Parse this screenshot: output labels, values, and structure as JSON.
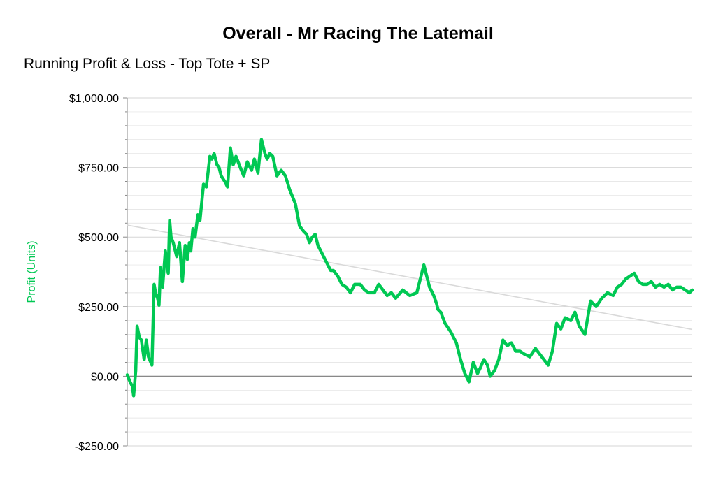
{
  "chart_data": {
    "type": "line",
    "title": "Overall - Mr Racing The Latemail",
    "subtitle": "Running Profit & Loss - Top Tote + SP",
    "xlabel": "",
    "ylabel": "Profit (Units)",
    "ylim": [
      -250,
      1000
    ],
    "y_ticks": [
      1000,
      750,
      500,
      250,
      0,
      -250
    ],
    "y_tick_labels": [
      "$1,000.00",
      "$750.00",
      "$500.00",
      "$250.00",
      "$0.00",
      "-$250.00"
    ],
    "grid": true,
    "legend": "none",
    "x_index_range": [
      0,
      800
    ],
    "colors": {
      "series": "#00c853",
      "trend": "#d9d9d9",
      "zero_line": "#888888",
      "grid": "#e0e0e0",
      "ylabel": "#00c853"
    },
    "series": [
      {
        "x": [
          0,
          4,
          7,
          9,
          12,
          14,
          17,
          20,
          24,
          27,
          30,
          35,
          38,
          40,
          43,
          45,
          47,
          50,
          54,
          58,
          60,
          62,
          65,
          70,
          74,
          78,
          82,
          85,
          88,
          90,
          93,
          96,
          100,
          103,
          108,
          112,
          117,
          120,
          123,
          127,
          130,
          133,
          138,
          142,
          146,
          150,
          154,
          160,
          165,
          170,
          176,
          180,
          185,
          190,
          195,
          198,
          202,
          206,
          212,
          218,
          224,
          230,
          238,
          244,
          250,
          254,
          258,
          262,
          266,
          270,
          276,
          280,
          284,
          288,
          292,
          298,
          304,
          310,
          316,
          322,
          330,
          336,
          342,
          350,
          356,
          362,
          368,
          374,
          380,
          390,
          400,
          410,
          420,
          428,
          434,
          438,
          440,
          444,
          450,
          458,
          466,
          472,
          478,
          484,
          490,
          496,
          500,
          505,
          510,
          514,
          520,
          526,
          532,
          538,
          544,
          550,
          556,
          562,
          570,
          578,
          584,
          590,
          596,
          602,
          608,
          614,
          620,
          628,
          634,
          640,
          648,
          656,
          664,
          672,
          680,
          688,
          694,
          700,
          706,
          712,
          718,
          724,
          730,
          736,
          742,
          748,
          754,
          760,
          766,
          772,
          778,
          784,
          790,
          796,
          800
        ],
        "values": [
          5,
          -20,
          -35,
          -70,
          20,
          180,
          140,
          130,
          60,
          130,
          70,
          40,
          330,
          300,
          280,
          255,
          390,
          320,
          450,
          370,
          560,
          500,
          480,
          430,
          480,
          340,
          470,
          420,
          480,
          450,
          530,
          500,
          580,
          560,
          690,
          680,
          790,
          780,
          800,
          760,
          750,
          720,
          700,
          680,
          820,
          760,
          790,
          750,
          720,
          770,
          740,
          780,
          730,
          850,
          800,
          780,
          800,
          790,
          720,
          740,
          720,
          670,
          620,
          540,
          520,
          510,
          480,
          500,
          510,
          470,
          440,
          420,
          400,
          380,
          380,
          360,
          330,
          320,
          300,
          330,
          330,
          310,
          300,
          300,
          330,
          310,
          290,
          300,
          280,
          310,
          290,
          300,
          400,
          320,
          290,
          260,
          240,
          230,
          190,
          160,
          120,
          60,
          10,
          -20,
          50,
          10,
          30,
          60,
          40,
          0,
          20,
          60,
          130,
          110,
          120,
          90,
          90,
          80,
          70,
          100,
          80,
          60,
          40,
          90,
          190,
          170,
          210,
          200,
          230,
          180,
          150,
          270,
          250,
          280,
          300,
          290,
          320,
          330,
          350,
          360,
          370,
          340,
          330,
          330,
          340,
          320,
          330,
          320,
          330,
          310,
          320,
          320,
          310,
          300,
          310
        ]
      }
    ],
    "trend_line": {
      "x": [
        0,
        800
      ],
      "values": [
        543,
        168
      ]
    }
  }
}
